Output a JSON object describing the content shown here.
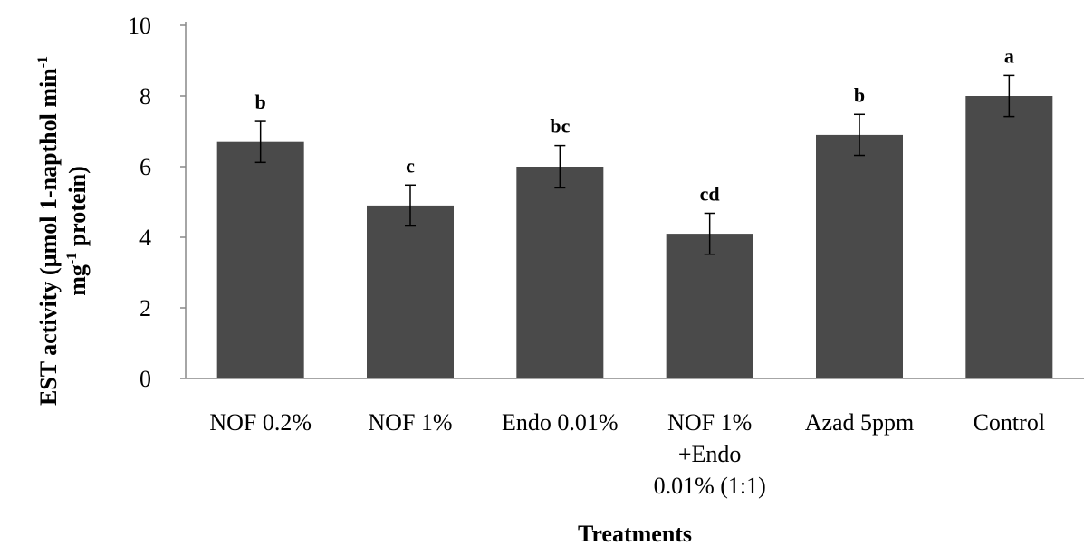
{
  "chart_data": {
    "type": "bar",
    "categories": [
      [
        "NOF 0.2%"
      ],
      [
        "NOF 1%"
      ],
      [
        "Endo 0.01%"
      ],
      [
        "NOF 1%",
        "+Endo",
        "0.01% (1:1)"
      ],
      [
        "Azad 5ppm"
      ],
      [
        "Control"
      ]
    ],
    "values": [
      6.7,
      4.9,
      6.0,
      4.1,
      6.9,
      8.0
    ],
    "errors": [
      0.58,
      0.58,
      0.6,
      0.58,
      0.58,
      0.58
    ],
    "significance_letters": [
      "b",
      "c",
      "bc",
      "cd",
      "b",
      "a"
    ],
    "ylim": [
      0,
      10
    ],
    "yticks": [
      0,
      2,
      4,
      6,
      8,
      10
    ],
    "xlabel": "Treatments",
    "ylabel_line1": "EST activity (µmol 1-napthol min",
    "ylabel_line1_sup": "-1",
    "ylabel_line2_pre": "mg",
    "ylabel_line2_sup": "-1",
    "ylabel_line2_post": " protein)",
    "bar_color": "#4a4a4a",
    "axis_color": "#888888"
  }
}
